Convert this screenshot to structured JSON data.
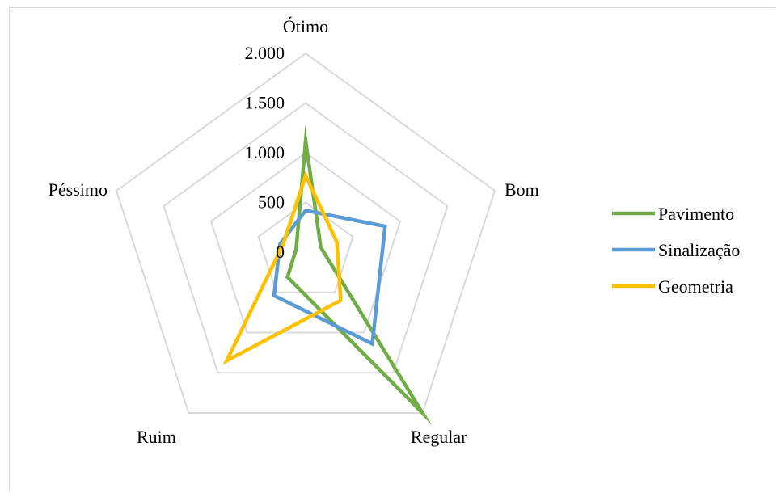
{
  "chart_data": {
    "type": "radar",
    "categories": [
      "Ótimo",
      "Bom",
      "Regular",
      "Ruim",
      "Péssimo"
    ],
    "rlim": [
      0,
      2000
    ],
    "ticks": [
      0,
      500,
      1000,
      1500,
      2000
    ],
    "tick_labels": [
      "0",
      "500",
      "1.000",
      "1.500",
      "2.000"
    ],
    "grid": true,
    "legend_position": "right",
    "series": [
      {
        "name": "Pavimento",
        "color": "#70ad47",
        "values": [
          1120,
          160,
          2000,
          310,
          100
        ]
      },
      {
        "name": "Sinalização",
        "color": "#5b9bd5",
        "values": [
          420,
          840,
          1140,
          540,
          270
        ]
      },
      {
        "name": "Geometria",
        "color": "#ffc000",
        "values": [
          770,
          330,
          600,
          1350,
          240
        ]
      }
    ]
  }
}
